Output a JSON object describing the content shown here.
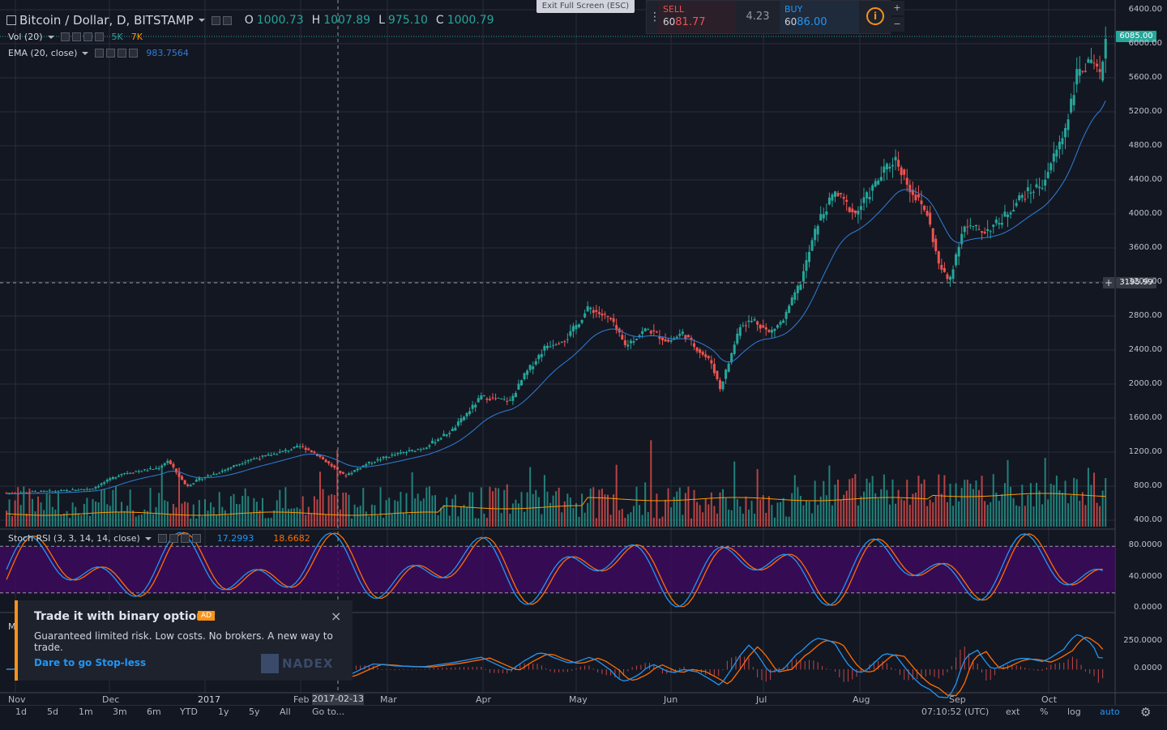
{
  "header": {
    "symbol_title": "Bitcoin / Dollar, D, BITSTAMP",
    "o_label": "O",
    "o_value": "1000.73",
    "h_label": "H",
    "h_value": "1007.89",
    "l_label": "L",
    "l_value": "975.10",
    "c_label": "C",
    "c_value": "1000.79"
  },
  "exit_fullscreen": "Exit Full Screen (ESC)",
  "trade": {
    "sell_label": "SELL",
    "sell_price_prefix": "60",
    "sell_price_big": "81.77",
    "spread": "4.23",
    "buy_label": "BUY",
    "buy_price_prefix": "60",
    "buy_price_big": "86.00",
    "info_icon": "info-icon",
    "plus": "+",
    "minus": "−"
  },
  "indicators": {
    "vol_label": "Vol (20)",
    "vol_val1": "5K",
    "vol_val2": "7K",
    "ema_label": "EMA (20, close)",
    "ema_value": "983.7564",
    "stoch_label": "Stoch RSI (3, 3, 14, 14, close)",
    "stoch_k": "17.2993",
    "stoch_d": "18.6682",
    "macd_letter": "M"
  },
  "price_axis": [
    "6400.00",
    "6000.00",
    "5600.00",
    "5200.00",
    "4800.00",
    "4400.00",
    "4000.00",
    "3600.00",
    "3200.00",
    "2800.00",
    "2400.00",
    "2000.00",
    "1600.00",
    "1200.00",
    "800.00",
    "400.00"
  ],
  "last_price_tag": "6085.00",
  "crosshair_price_tag": "3195.99",
  "stoch_axis": [
    "80.0000",
    "40.0000",
    "0.0000"
  ],
  "macd_axis": [
    "250.0000",
    "0.0000"
  ],
  "time_axis": [
    "Nov",
    "Dec",
    "2017",
    "Feb",
    "Mar",
    "Apr",
    "May",
    "Jun",
    "Jul",
    "Aug",
    "Sep",
    "Oct"
  ],
  "crosshair_date": "2017-02-13",
  "toolbar": {
    "ranges": [
      "1d",
      "5d",
      "1m",
      "3m",
      "6m",
      "YTD",
      "1y",
      "5y",
      "All"
    ],
    "goto": "Go to...",
    "clock": "07:10:52 (UTC)",
    "ext": "ext",
    "pct": "%",
    "log": "log",
    "auto": "auto"
  },
  "ad": {
    "title": "Trade it with binary options!",
    "badge": "AD",
    "body": "Guaranteed limited risk. Low costs. No brokers. A new way to trade.",
    "link": "Dare to go Stop-less",
    "brand": "NADEX",
    "close": "×"
  },
  "colors": {
    "up": "#26a69a",
    "down": "#ef5350",
    "ema": "#2f7ed8",
    "volma": "#ff9800",
    "stoch_k": "#2196f3",
    "stoch_d": "#ff6d00",
    "stoch_bg": "#3c0a5c",
    "bg": "#131722",
    "accent": "#f7931a"
  },
  "chart_data": {
    "type": "candlestick",
    "title": "Bitcoin / Dollar, D, BITSTAMP",
    "ylim": [
      400,
      6400
    ],
    "x_months": [
      "Nov",
      "Dec",
      "2017",
      "Feb",
      "Mar",
      "Apr",
      "May",
      "Jun",
      "Jul",
      "Aug",
      "Sep",
      "Oct"
    ],
    "close_monthly_approx": {
      "x": [
        "2016-11",
        "2016-12",
        "2017-01",
        "2017-02",
        "2017-03",
        "2017-04",
        "2017-05",
        "2017-06",
        "2017-07",
        "2017-08",
        "2017-09",
        "2017-10"
      ],
      "close": [
        740,
        960,
        970,
        1190,
        1080,
        1350,
        2300,
        2500,
        2870,
        4700,
        4340,
        6085
      ]
    },
    "ohlc_current": {
      "open": 1000.73,
      "high": 1007.89,
      "low": 975.1,
      "close": 1000.79
    },
    "last_price": 6085.0,
    "crosshair_price": 3195.99,
    "ema_value": 983.7564,
    "stoch_rsi": {
      "k": 17.2993,
      "d": 18.6682,
      "upper": 80,
      "lower": 20,
      "ylim": [
        0,
        100
      ]
    }
  }
}
